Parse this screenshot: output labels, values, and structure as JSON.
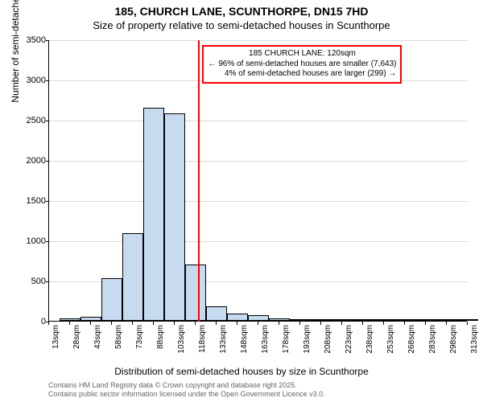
{
  "chart": {
    "type": "histogram",
    "title_main": "185, CHURCH LANE, SCUNTHORPE, DN15 7HD",
    "title_sub": "Size of property relative to semi-detached houses in Scunthorpe",
    "ylabel": "Number of semi-detached properties",
    "xlabel": "Distribution of semi-detached houses by size in Scunthorpe",
    "background_color": "#ffffff",
    "bar_fill": "#c6dbef",
    "bar_border": "#000000",
    "grid_color": "#000000",
    "ref_line_color": "#ff0000",
    "annotation_border": "#ff0000",
    "ylim": [
      0,
      3500
    ],
    "ytick_step": 500,
    "xticks": [
      "13sqm",
      "28sqm",
      "43sqm",
      "58sqm",
      "73sqm",
      "88sqm",
      "103sqm",
      "118sqm",
      "133sqm",
      "148sqm",
      "163sqm",
      "178sqm",
      "193sqm",
      "208sqm",
      "223sqm",
      "238sqm",
      "253sqm",
      "268sqm",
      "283sqm",
      "298sqm",
      "313sqm"
    ],
    "xtick_start": 13,
    "xtick_step": 15,
    "bars": [
      {
        "x": 28,
        "v": 30
      },
      {
        "x": 43,
        "v": 50
      },
      {
        "x": 58,
        "v": 530
      },
      {
        "x": 73,
        "v": 1090
      },
      {
        "x": 88,
        "v": 2650
      },
      {
        "x": 103,
        "v": 2580
      },
      {
        "x": 118,
        "v": 700
      },
      {
        "x": 133,
        "v": 180
      },
      {
        "x": 148,
        "v": 90
      },
      {
        "x": 163,
        "v": 70
      },
      {
        "x": 178,
        "v": 35
      },
      {
        "x": 193,
        "v": 18
      },
      {
        "x": 208,
        "v": 6
      },
      {
        "x": 223,
        "v": 4
      },
      {
        "x": 238,
        "v": 3
      },
      {
        "x": 253,
        "v": 2
      },
      {
        "x": 268,
        "v": 1
      },
      {
        "x": 283,
        "v": 1
      },
      {
        "x": 298,
        "v": 1
      },
      {
        "x": 313,
        "v": 1
      }
    ],
    "bar_width_sqm": 15,
    "ref_line_x": 120,
    "annotation": {
      "line1": "185 CHURCH LANE: 120sqm",
      "line2": "← 96% of semi-detached houses are smaller (7,643)",
      "line3": "4% of semi-detached houses are larger (299) →"
    },
    "attribution": {
      "line1": "Contains HM Land Registry data © Crown copyright and database right 2025.",
      "line2": "Contains public sector information licensed under the Open Government Licence v3.0."
    },
    "title_fontsize": 14,
    "label_fontsize": 12,
    "tick_fontsize": 11
  }
}
